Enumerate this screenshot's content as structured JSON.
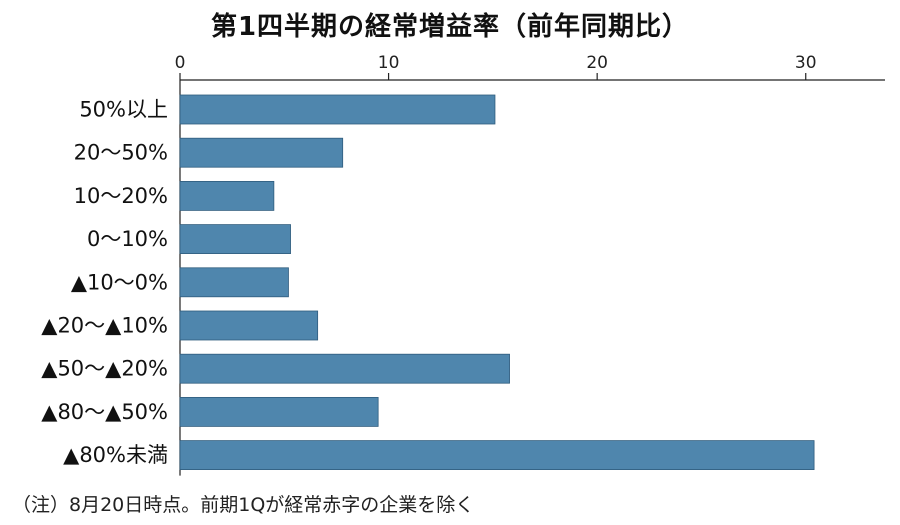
{
  "chart_data": {
    "type": "bar",
    "orientation": "horizontal",
    "title": "第1四半期の経常増益率（前年同期比）",
    "note": "（注）8月20日時点。前期1Qが経常赤字の企業を除く",
    "categories": [
      "50%以上",
      "20～50%",
      "10～20%",
      "0～10%",
      "▲10～0%",
      "▲20～▲10%",
      "▲50～▲20%",
      "▲80～▲50%",
      "▲80%未満"
    ],
    "values": [
      15.1,
      7.8,
      4.5,
      5.3,
      5.2,
      6.6,
      15.8,
      9.5,
      30.4
    ],
    "xticks": [
      0,
      10,
      20,
      30
    ],
    "xlim": [
      0,
      33.8
    ],
    "axis_position": "top",
    "grid": false,
    "bar_color": "#4f86ad"
  }
}
